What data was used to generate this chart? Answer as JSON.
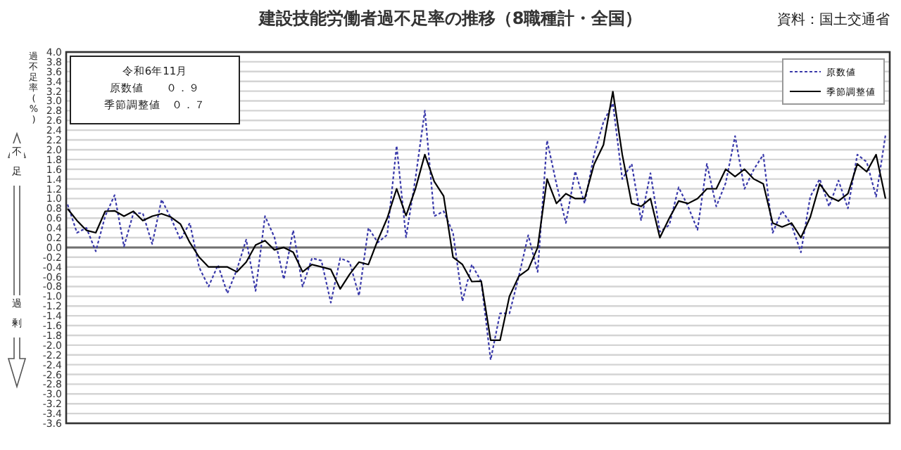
{
  "chart_data": {
    "type": "line",
    "title": "建設技能労働者過不足率の推移（8職種計・全国）",
    "ylabel": "過不足率(%)",
    "annotations": [
      "令和6年11月",
      "原数値　　０．９",
      "季節調整値　０．７",
      "資料：国土交通省",
      "不足",
      "過剰"
    ],
    "categories": [
      null,
      null,
      null,
      null,
      null,
      null,
      null,
      null,
      null,
      null,
      null,
      null,
      null,
      null,
      null,
      null,
      null,
      null,
      null,
      null,
      null,
      null,
      null,
      null,
      null,
      null,
      null,
      null,
      null,
      null,
      null,
      null,
      null,
      null,
      null,
      null,
      null,
      null,
      null,
      null,
      null,
      null,
      null,
      null,
      null,
      null,
      null,
      null,
      null,
      null,
      null,
      null,
      null,
      null,
      null,
      null,
      null,
      null,
      null,
      null,
      null,
      null,
      null,
      null,
      null,
      null,
      null,
      null,
      null,
      null,
      null,
      null,
      null,
      null,
      null,
      null,
      null,
      null,
      null,
      null,
      null,
      null,
      null,
      null,
      null,
      null,
      null,
      null
    ],
    "series": [
      {
        "name": "原数値",
        "color": "#3a3aaa",
        "line_style": "dotted",
        "values": [
          0.88,
          0.3,
          0.4,
          -0.08,
          0.64,
          1.07,
          0.02,
          0.7,
          0.7,
          0.07,
          0.98,
          0.6,
          0.16,
          0.5,
          -0.41,
          -0.8,
          -0.36,
          -0.94,
          -0.46,
          0.16,
          -0.89,
          0.64,
          0.21,
          -0.65,
          0.35,
          -0.8,
          -0.22,
          -0.27,
          -1.13,
          -0.22,
          -0.3,
          -0.99,
          0.4,
          0.1,
          0.26,
          2.08,
          0.21,
          1.41,
          2.8,
          0.64,
          0.74,
          0.3,
          -1.1,
          -0.35,
          -0.7,
          -2.3,
          -1.35,
          -1.35,
          -0.59,
          0.25,
          -0.5,
          2.19,
          1.3,
          0.5,
          1.56,
          0.9,
          1.9,
          2.57,
          2.95,
          1.4,
          1.71,
          0.56,
          1.52,
          0.32,
          0.46,
          1.23,
          0.84,
          0.36,
          1.71,
          0.84,
          1.32,
          2.28,
          1.2,
          1.6,
          1.9,
          0.3,
          0.75,
          0.46,
          -0.1,
          1.04,
          1.4,
          0.84,
          1.37,
          0.8,
          1.9,
          1.75,
          1.04,
          2.3
        ]
      },
      {
        "name": "季節調整値",
        "color": "#000000",
        "line_style": "solid",
        "values": [
          0.79,
          0.55,
          0.35,
          0.3,
          0.74,
          0.75,
          0.64,
          0.74,
          0.55,
          0.64,
          0.69,
          0.62,
          0.48,
          0.1,
          -0.2,
          -0.4,
          -0.4,
          -0.4,
          -0.5,
          -0.3,
          0.05,
          0.14,
          -0.05,
          0.0,
          -0.1,
          -0.5,
          -0.35,
          -0.4,
          -0.45,
          -0.85,
          -0.55,
          -0.3,
          -0.35,
          0.15,
          0.6,
          1.2,
          0.65,
          1.2,
          1.9,
          1.35,
          1.05,
          -0.2,
          -0.35,
          -0.7,
          -0.69,
          -1.9,
          -1.9,
          -1.0,
          -0.59,
          -0.45,
          0.0,
          1.4,
          0.9,
          1.1,
          1.0,
          1.0,
          1.7,
          2.1,
          3.19,
          1.9,
          0.9,
          0.84,
          1.0,
          0.2,
          0.6,
          0.95,
          0.9,
          1.0,
          1.2,
          1.2,
          1.6,
          1.45,
          1.6,
          1.4,
          1.3,
          0.5,
          0.42,
          0.5,
          0.2,
          0.62,
          1.3,
          1.04,
          0.95,
          1.1,
          1.71,
          1.55,
          1.9,
          1.0
        ]
      }
    ],
    "ylim": [
      -3.6,
      4.0
    ],
    "yticks": [
      {
        "value": -3.6,
        "label": "-3.6"
      },
      {
        "value": -3.4,
        "label": "-3.4"
      },
      {
        "value": -3.2,
        "label": "-3.2"
      },
      {
        "value": -3.0,
        "label": "-3.0"
      },
      {
        "value": -2.8,
        "label": "-2.8"
      },
      {
        "value": -2.6,
        "label": "-2.6"
      },
      {
        "value": -2.4,
        "label": "-2.4"
      },
      {
        "value": -2.2,
        "label": "-2.2"
      },
      {
        "value": -2.0,
        "label": "-2.0"
      },
      {
        "value": -1.8,
        "label": "-1.8"
      },
      {
        "value": -1.6,
        "label": "-1.6"
      },
      {
        "value": -1.4,
        "label": "-1.4"
      },
      {
        "value": -1.2,
        "label": "-1.2"
      },
      {
        "value": -1.0,
        "label": "-1.0"
      },
      {
        "value": -0.8,
        "label": "-0.8"
      },
      {
        "value": -0.6,
        "label": "-0.6"
      },
      {
        "value": -0.4,
        "label": "-0.4"
      },
      {
        "value": -0.2,
        "label": "-0.2"
      },
      {
        "value": 0,
        "label": "0.0"
      },
      {
        "value": 0.2,
        "label": "0.2"
      },
      {
        "value": 0.4,
        "label": "0.4"
      },
      {
        "value": 0.6,
        "label": "0.6"
      },
      {
        "value": 0.8,
        "label": "0.8"
      },
      {
        "value": 1.0,
        "label": "1.0"
      },
      {
        "value": 1.2,
        "label": "1.2"
      },
      {
        "value": 1.4,
        "label": "1.4"
      },
      {
        "value": 1.6,
        "label": "1.6"
      },
      {
        "value": 1.8,
        "label": "1.8"
      },
      {
        "value": 2.0,
        "label": "2.0"
      },
      {
        "value": 2.2,
        "label": "2.2"
      },
      {
        "value": 2.4,
        "label": "2.4"
      },
      {
        "value": 2.6,
        "label": "2.6"
      },
      {
        "value": 2.8,
        "label": "2.8"
      },
      {
        "value": 3.0,
        "label": "3.0"
      },
      {
        "value": 3.2,
        "label": "3.2"
      },
      {
        "value": 3.4,
        "label": "3.4"
      },
      {
        "value": 3.6,
        "label": "3.6"
      },
      {
        "value": 3.8,
        "label": "3.8"
      },
      {
        "value": 4.0,
        "label": "4.0"
      }
    ],
    "ref_lines": [
      {
        "axis": "y",
        "value": 0,
        "color": "#707070"
      }
    ],
    "grid": "y",
    "legend": "top right",
    "tick_labels": "y"
  }
}
